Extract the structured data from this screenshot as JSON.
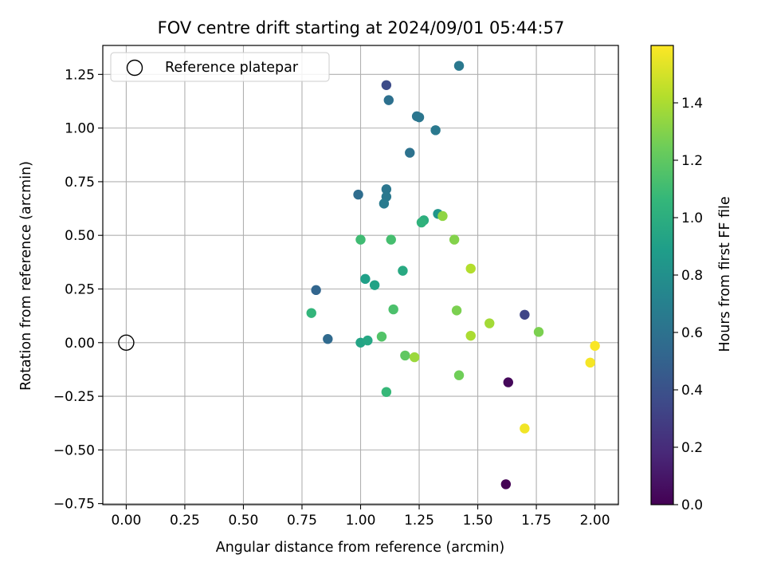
{
  "chart_data": {
    "type": "scatter",
    "title": "FOV centre drift starting at 2024/09/01 05:44:57",
    "xlabel": "Angular distance from reference (arcmin)",
    "ylabel": "Rotation from reference (arcmin)",
    "xlim": [
      -0.1,
      2.1
    ],
    "ylim": [
      -0.755,
      1.385
    ],
    "xticks": [
      0.0,
      0.25,
      0.5,
      0.75,
      1.0,
      1.25,
      1.5,
      1.75,
      2.0
    ],
    "xtick_labels": [
      "0.00",
      "0.25",
      "0.50",
      "0.75",
      "1.00",
      "1.25",
      "1.50",
      "1.75",
      "2.00"
    ],
    "yticks": [
      -0.75,
      -0.5,
      -0.25,
      0.0,
      0.25,
      0.5,
      0.75,
      1.0,
      1.25
    ],
    "ytick_labels": [
      "−0.75",
      "−0.50",
      "−0.25",
      "0.00",
      "0.25",
      "0.50",
      "0.75",
      "1.00",
      "1.25"
    ],
    "grid": true,
    "legend": {
      "position": "upper-left",
      "entries": [
        {
          "label": "Reference platepar",
          "marker": "open-circle"
        }
      ]
    },
    "reference_point": {
      "x": 0.0,
      "y": 0.0
    },
    "colorbar": {
      "label": "Hours from first FF file",
      "colormap": "viridis",
      "range": [
        0.0,
        1.6
      ],
      "ticks": [
        0.0,
        0.2,
        0.4,
        0.6,
        0.8,
        1.0,
        1.2,
        1.4
      ],
      "tick_labels": [
        "0.0",
        "0.2",
        "0.4",
        "0.6",
        "0.8",
        "1.0",
        "1.2",
        "1.4"
      ]
    },
    "points": [
      {
        "x": 1.62,
        "y": -0.66,
        "c": 0.0
      },
      {
        "x": 1.63,
        "y": -0.185,
        "c": 0.03
      },
      {
        "x": 1.7,
        "y": 0.13,
        "c": 0.33
      },
      {
        "x": 1.11,
        "y": 1.2,
        "c": 0.37
      },
      {
        "x": 0.81,
        "y": 0.245,
        "c": 0.52
      },
      {
        "x": 0.86,
        "y": 0.017,
        "c": 0.55
      },
      {
        "x": 0.99,
        "y": 0.69,
        "c": 0.57
      },
      {
        "x": 1.12,
        "y": 1.13,
        "c": 0.59
      },
      {
        "x": 1.21,
        "y": 0.885,
        "c": 0.6
      },
      {
        "x": 1.24,
        "y": 1.055,
        "c": 0.62
      },
      {
        "x": 1.25,
        "y": 1.05,
        "c": 0.63
      },
      {
        "x": 1.42,
        "y": 1.29,
        "c": 0.64
      },
      {
        "x": 1.32,
        "y": 0.99,
        "c": 0.65
      },
      {
        "x": 1.11,
        "y": 0.715,
        "c": 0.63
      },
      {
        "x": 1.11,
        "y": 0.68,
        "c": 0.64
      },
      {
        "x": 1.1,
        "y": 0.648,
        "c": 0.66
      },
      {
        "x": 1.33,
        "y": 0.6,
        "c": 0.84
      },
      {
        "x": 1.02,
        "y": 0.297,
        "c": 0.9
      },
      {
        "x": 1.06,
        "y": 0.268,
        "c": 0.92
      },
      {
        "x": 1.0,
        "y": 0.0,
        "c": 0.93
      },
      {
        "x": 1.03,
        "y": 0.01,
        "c": 0.95
      },
      {
        "x": 1.18,
        "y": 0.335,
        "c": 0.97
      },
      {
        "x": 1.27,
        "y": 0.57,
        "c": 1.0
      },
      {
        "x": 1.26,
        "y": 0.56,
        "c": 1.03
      },
      {
        "x": 0.79,
        "y": 0.138,
        "c": 1.05
      },
      {
        "x": 1.11,
        "y": -0.23,
        "c": 1.07
      },
      {
        "x": 1.0,
        "y": 0.48,
        "c": 1.1
      },
      {
        "x": 1.13,
        "y": 0.48,
        "c": 1.12
      },
      {
        "x": 1.14,
        "y": 0.155,
        "c": 1.14
      },
      {
        "x": 1.09,
        "y": 0.028,
        "c": 1.16
      },
      {
        "x": 1.19,
        "y": -0.06,
        "c": 1.2
      },
      {
        "x": 1.42,
        "y": -0.152,
        "c": 1.25
      },
      {
        "x": 1.41,
        "y": 0.15,
        "c": 1.28
      },
      {
        "x": 1.76,
        "y": 0.05,
        "c": 1.28
      },
      {
        "x": 1.4,
        "y": 0.48,
        "c": 1.3
      },
      {
        "x": 1.35,
        "y": 0.59,
        "c": 1.33
      },
      {
        "x": 1.23,
        "y": -0.068,
        "c": 1.36
      },
      {
        "x": 1.55,
        "y": 0.09,
        "c": 1.38
      },
      {
        "x": 1.47,
        "y": 0.032,
        "c": 1.4
      },
      {
        "x": 1.47,
        "y": 0.345,
        "c": 1.42
      },
      {
        "x": 1.7,
        "y": -0.4,
        "c": 1.57
      },
      {
        "x": 1.98,
        "y": -0.093,
        "c": 1.58
      },
      {
        "x": 2.0,
        "y": -0.015,
        "c": 1.59
      }
    ]
  }
}
